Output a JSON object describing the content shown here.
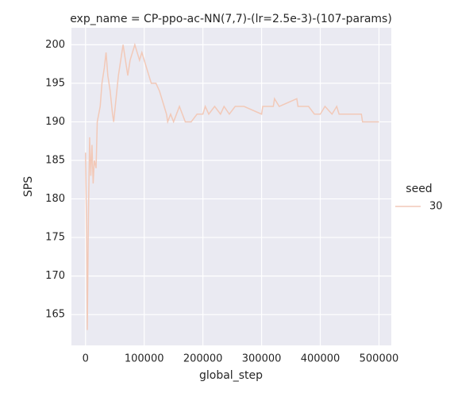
{
  "chart_data": {
    "type": "line",
    "title": "exp_name = CP-ppo-ac-NN(7,7)-(lr=2.5e-3)-(107-params)",
    "xlabel": "global_step",
    "ylabel": "SPS",
    "legend_title": "seed",
    "legend": "right",
    "grid": true,
    "x": [
      0,
      2000,
      3000,
      5000,
      7000,
      9000,
      11000,
      13000,
      15000,
      18000,
      20000,
      25000,
      28000,
      32000,
      35000,
      38000,
      42000,
      46000,
      48000,
      52000,
      56000,
      60000,
      64000,
      68000,
      72000,
      76000,
      80000,
      84000,
      88000,
      92000,
      96000,
      100000,
      104000,
      108000,
      112000,
      120000,
      126000,
      130000,
      134000,
      138000,
      140000,
      145000,
      150000,
      155000,
      160000,
      165000,
      170000,
      180000,
      190000,
      200000,
      204000,
      210000,
      220000,
      230000,
      236000,
      245000,
      255000,
      270000,
      300000,
      302000,
      320000,
      322000,
      330000,
      360000,
      362000,
      380000,
      390000,
      400000,
      408000,
      420000,
      428000,
      432000,
      470000,
      472000,
      500000
    ],
    "series": [
      {
        "name": "30",
        "color": "#f2c9b8",
        "values": [
          186,
          175,
          163,
          178,
          188,
          183,
          187,
          182,
          185,
          184,
          190,
          192,
          195,
          197,
          199,
          196,
          194,
          191,
          190,
          193,
          196,
          198,
          200,
          198,
          196,
          198,
          199,
          200,
          199,
          198,
          199,
          198,
          197,
          196,
          195,
          195,
          194,
          193,
          192,
          191,
          190,
          191,
          190,
          191,
          192,
          191,
          190,
          190,
          191,
          191,
          192,
          191,
          192,
          191,
          192,
          191,
          192,
          192,
          191,
          192,
          192,
          193,
          192,
          193,
          192,
          192,
          191,
          191,
          192,
          191,
          192,
          191,
          191,
          190,
          190
        ]
      }
    ],
    "xlim": [
      -24000,
      521000
    ],
    "xticks": [
      0,
      100000,
      200000,
      300000,
      400000,
      500000
    ],
    "ylim": [
      161,
      202.2
    ],
    "yticks": [
      165,
      170,
      175,
      180,
      185,
      190,
      195,
      200
    ]
  }
}
